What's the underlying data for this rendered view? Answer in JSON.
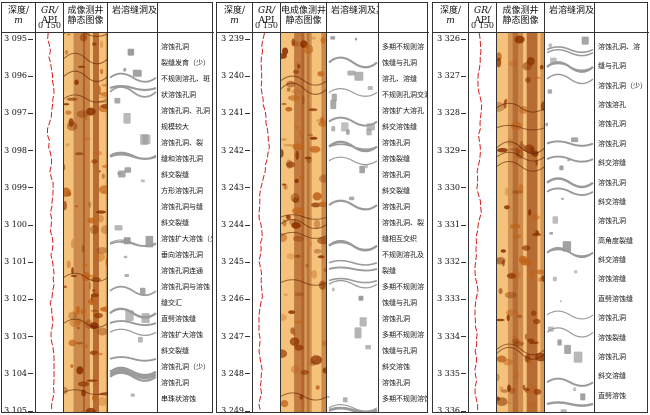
{
  "headers": {
    "depth": "深度/",
    "depth_unit": "m",
    "gr_name": "GR/",
    "gr_unit": "API",
    "gr_min": "0",
    "gr_max": "150",
    "image_left": "成像测井\n静态图像",
    "image_center": "电成像测井\n静态图像",
    "lith_left": "岩溶缝洞及其特征",
    "lith_center": "岩溶缝洞及其特征",
    "lith_right": "岩溶缝洞及其特征"
  },
  "panels": [
    {
      "depths": [
        "3 095",
        "3 096",
        "3 097",
        "3 098",
        "3 099",
        "3 100",
        "3 101",
        "3 102",
        "3 103",
        "3 104",
        "3 105"
      ],
      "labels": [
        "溶蚀孔洞",
        "裂缝发育（少）",
        "不规则溶孔、斑",
        "状溶蚀孔洞",
        "溶蚀孔洞、孔洞",
        "规模较大",
        "溶蚀孔洞、裂",
        "缝和溶蚀孔洞",
        "斜交裂缝",
        "方形溶蚀孔洞",
        "溶蚀孔洞与缝",
        "斜交裂缝",
        "溶蚀扩大溶蚀（少）",
        "垂向溶蚀孔洞",
        "溶蚀孔洞连通",
        "溶蚀孔洞与溶蚀",
        "缝交汇",
        "直劈溶蚀缝",
        "溶蚀扩大溶蚀",
        "斜交裂缝",
        "溶蚀孔洞（少）",
        "溶蚀孔洞",
        "串珠状溶蚀"
      ]
    },
    {
      "depths": [
        "3 239",
        "3 240",
        "3 241",
        "3 242",
        "3 243",
        "3 244",
        "3 245",
        "3 246",
        "3 247",
        "3 248",
        "3 249"
      ],
      "labels": [
        "多期不规则溶",
        "蚀缝与孔洞",
        "溶孔、溶缝",
        "不规则孔洞交汇",
        "溶蚀扩大溶孔",
        "斜交溶蚀缝",
        "溶蚀孔洞",
        "溶蚀裂缝",
        "溶蚀孔洞",
        "斜交裂缝",
        "溶蚀孔洞",
        "溶蚀孔洞、裂",
        "缝相互交织",
        "不规则溶孔及",
        "裂缝",
        "多期不规则溶",
        "蚀缝与孔洞",
        "溶蚀孔洞",
        "多期不规则溶",
        "蚀缝与孔洞",
        "斜交溶蚀",
        "溶蚀孔洞",
        "多期不规则溶蚀缝"
      ]
    },
    {
      "depths": [
        "3 326",
        "3 327",
        "3 328",
        "3 329",
        "3 330",
        "3 331",
        "3 332",
        "3 333",
        "3 334",
        "3 335",
        "3 336"
      ],
      "labels": [
        "溶蚀孔洞、溶",
        "缝与孔洞",
        "溶蚀孔洞（少）",
        "溶蚀溶孔",
        "溶蚀孔洞",
        "溶蚀孔洞",
        "斜交溶缝",
        "溶蚀孔洞",
        "斜交溶缝",
        "溶蚀孔洞",
        "高角度裂缝",
        "斜交溶缝",
        "溶蚀溶缝",
        "直劈溶蚀缝",
        "溶蚀孔洞",
        "溶蚀裂缝",
        "溶蚀孔洞",
        "斜交溶缝",
        "直劈溶蚀"
      ]
    }
  ],
  "colors": {
    "gr_curve": "#d62020",
    "image_dark": "#8a2f00",
    "image_light": "#f4c27a",
    "sketch_gray": "#9a9a9a"
  }
}
